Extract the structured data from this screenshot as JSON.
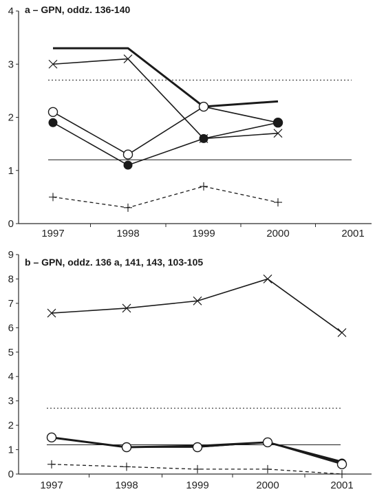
{
  "colors": {
    "line": "#1a1a1a",
    "axis": "#2a2a2a",
    "text": "#222222",
    "background": "#ffffff"
  },
  "chart_data": [
    {
      "type": "line",
      "title": "a – GPN, oddz. 136-140",
      "categories": [
        "1997",
        "1998",
        "1999",
        "2000",
        "2001"
      ],
      "ylim": [
        0,
        4
      ],
      "yticks": [
        "0",
        "1",
        "2",
        "3",
        "4"
      ],
      "grid": false,
      "series": [
        {
          "marker": "none",
          "style": "thick",
          "values": [
            3.3,
            3.3,
            2.2,
            2.3,
            null
          ]
        },
        {
          "marker": "cross",
          "style": "solid",
          "values": [
            3.0,
            3.1,
            1.6,
            1.7,
            null
          ]
        },
        {
          "marker": "open-circle",
          "style": "solid",
          "values": [
            2.1,
            1.3,
            2.2,
            1.9,
            null
          ]
        },
        {
          "marker": "filled-circle",
          "style": "solid",
          "values": [
            1.9,
            1.1,
            1.6,
            1.9,
            null
          ]
        },
        {
          "marker": "plus",
          "style": "dashed",
          "values": [
            0.5,
            0.3,
            0.7,
            0.4,
            null
          ]
        }
      ],
      "reference_lines": [
        {
          "value": 2.7,
          "style": "dotted"
        },
        {
          "value": 1.2,
          "style": "solid"
        }
      ]
    },
    {
      "type": "line",
      "title": "b – GPN, oddz. 136 a, 141, 143, 103-105",
      "categories": [
        "1997",
        "1998",
        "1999",
        "2000",
        "2001"
      ],
      "ylim": [
        0,
        9
      ],
      "yticks": [
        "0",
        "1",
        "2",
        "3",
        "4",
        "5",
        "6",
        "7",
        "8",
        "9"
      ],
      "grid": false,
      "series": [
        {
          "marker": "cross",
          "style": "solid",
          "values": [
            6.6,
            6.8,
            7.1,
            8.0,
            5.8
          ]
        },
        {
          "marker": "none",
          "style": "thick",
          "values": [
            1.5,
            1.1,
            1.15,
            1.3,
            0.5
          ]
        },
        {
          "marker": "filled-circle",
          "style": "solid",
          "values": [
            1.5,
            1.1,
            1.1,
            1.3,
            0.45
          ]
        },
        {
          "marker": "open-circle",
          "style": "solid",
          "values": [
            1.5,
            1.1,
            1.1,
            1.3,
            0.4
          ]
        },
        {
          "marker": "plus",
          "style": "dashed",
          "values": [
            0.4,
            0.3,
            0.2,
            0.2,
            0.0
          ]
        }
      ],
      "reference_lines": [
        {
          "value": 2.7,
          "style": "dotted"
        },
        {
          "value": 1.2,
          "style": "solid"
        }
      ]
    }
  ]
}
